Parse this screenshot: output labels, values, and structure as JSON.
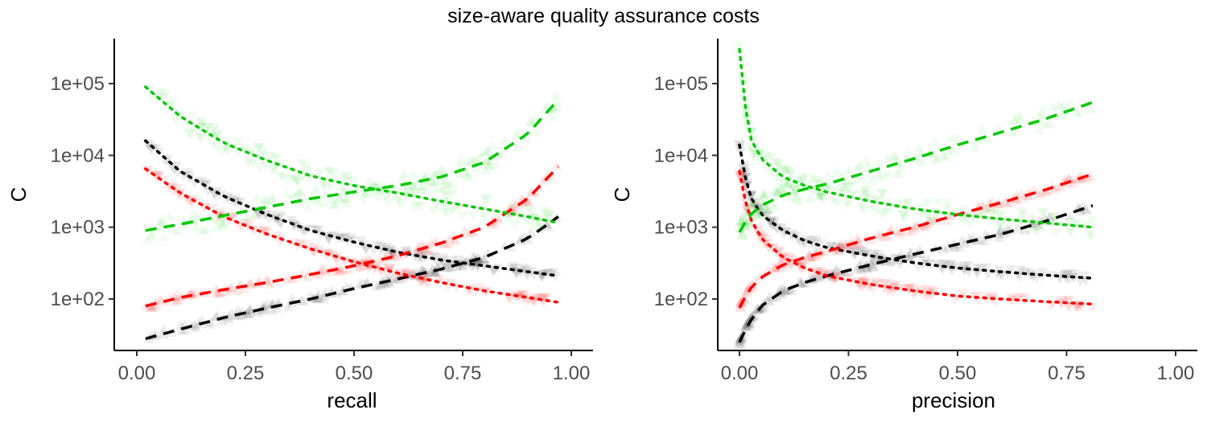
{
  "title": "size-aware quality assurance costs",
  "colors": {
    "black": "#000000",
    "red": "#ff0000",
    "green": "#00c800"
  },
  "chart_data": [
    {
      "type": "scatter",
      "panel": "left",
      "xlabel": "recall",
      "ylabel": "C",
      "xlim": [
        0,
        1
      ],
      "ylim": [
        20,
        400000
      ],
      "yscale": "log",
      "xticks": [
        "0.00",
        "0.25",
        "0.50",
        "0.75",
        "1.00"
      ],
      "yticks": [
        "1e+02",
        "1e+03",
        "1e+04",
        "1e+05"
      ],
      "grid": false,
      "series": [
        {
          "color": "black",
          "marker": "triangle-up",
          "line": "dashed",
          "x": [
            0.02,
            0.1,
            0.2,
            0.3,
            0.4,
            0.5,
            0.6,
            0.7,
            0.8,
            0.9,
            0.97
          ],
          "y": [
            28,
            38,
            55,
            75,
            100,
            140,
            190,
            260,
            380,
            700,
            1400
          ]
        },
        {
          "color": "black",
          "marker": "triangle-down",
          "line": "dotted",
          "x": [
            0.02,
            0.1,
            0.2,
            0.3,
            0.4,
            0.5,
            0.6,
            0.7,
            0.8,
            0.9,
            0.97
          ],
          "y": [
            16000,
            6000,
            2700,
            1500,
            900,
            620,
            450,
            350,
            290,
            240,
            210
          ]
        },
        {
          "color": "red",
          "marker": "triangle-up",
          "line": "dashed",
          "x": [
            0.02,
            0.1,
            0.2,
            0.3,
            0.4,
            0.5,
            0.6,
            0.7,
            0.8,
            0.9,
            0.97
          ],
          "y": [
            80,
            105,
            135,
            170,
            220,
            290,
            400,
            600,
            1000,
            2500,
            7000
          ]
        },
        {
          "color": "red",
          "marker": "triangle-down",
          "line": "dotted",
          "x": [
            0.02,
            0.1,
            0.2,
            0.3,
            0.4,
            0.5,
            0.6,
            0.7,
            0.8,
            0.9,
            0.97
          ],
          "y": [
            6500,
            3000,
            1400,
            800,
            500,
            330,
            230,
            170,
            130,
            105,
            90
          ]
        },
        {
          "color": "green",
          "marker": "triangle-up",
          "line": "dashed",
          "x": [
            0.02,
            0.1,
            0.2,
            0.3,
            0.4,
            0.5,
            0.6,
            0.7,
            0.8,
            0.9,
            0.97
          ],
          "y": [
            900,
            1100,
            1450,
            1900,
            2500,
            3100,
            3800,
            5000,
            8000,
            20000,
            60000
          ]
        },
        {
          "color": "green",
          "marker": "triangle-down",
          "line": "dotted",
          "x": [
            0.02,
            0.1,
            0.2,
            0.3,
            0.4,
            0.5,
            0.6,
            0.7,
            0.8,
            0.9,
            0.97
          ],
          "y": [
            90000,
            35000,
            15000,
            8500,
            5200,
            3800,
            3000,
            2300,
            1800,
            1400,
            1150
          ]
        }
      ]
    },
    {
      "type": "scatter",
      "panel": "right",
      "xlabel": "precision",
      "ylabel": "C",
      "xlim": [
        0,
        1
      ],
      "ylim": [
        20,
        400000
      ],
      "yscale": "log",
      "xticks": [
        "0.00",
        "0.25",
        "0.50",
        "0.75",
        "1.00"
      ],
      "yticks": [
        "1e+02",
        "1e+03",
        "1e+04",
        "1e+05"
      ],
      "grid": false,
      "series": [
        {
          "color": "black",
          "marker": "triangle-up",
          "line": "dashed",
          "x": [
            0.0,
            0.02,
            0.05,
            0.1,
            0.15,
            0.2,
            0.3,
            0.4,
            0.5,
            0.6,
            0.7,
            0.81
          ],
          "y": [
            25,
            45,
            80,
            130,
            170,
            210,
            300,
            420,
            580,
            800,
            1200,
            2000
          ]
        },
        {
          "color": "black",
          "marker": "triangle-down",
          "line": "dotted",
          "x": [
            0.0,
            0.02,
            0.05,
            0.1,
            0.15,
            0.2,
            0.3,
            0.4,
            0.5,
            0.6,
            0.7,
            0.81
          ],
          "y": [
            14000,
            3000,
            1500,
            900,
            650,
            520,
            400,
            320,
            270,
            240,
            215,
            195
          ]
        },
        {
          "color": "red",
          "marker": "triangle-up",
          "line": "dashed",
          "x": [
            0.0,
            0.02,
            0.05,
            0.1,
            0.15,
            0.2,
            0.3,
            0.4,
            0.5,
            0.6,
            0.7,
            0.81
          ],
          "y": [
            75,
            130,
            200,
            300,
            380,
            460,
            700,
            1000,
            1500,
            2200,
            3300,
            5500
          ]
        },
        {
          "color": "red",
          "marker": "triangle-down",
          "line": "dotted",
          "x": [
            0.0,
            0.02,
            0.05,
            0.1,
            0.15,
            0.2,
            0.3,
            0.4,
            0.5,
            0.6,
            0.7,
            0.81
          ],
          "y": [
            6000,
            1500,
            700,
            380,
            270,
            210,
            160,
            130,
            110,
            100,
            92,
            85
          ]
        },
        {
          "color": "green",
          "marker": "triangle-up",
          "line": "dashed",
          "x": [
            0.0,
            0.02,
            0.05,
            0.1,
            0.15,
            0.2,
            0.3,
            0.4,
            0.5,
            0.6,
            0.7,
            0.81
          ],
          "y": [
            850,
            1400,
            2000,
            2800,
            3400,
            4000,
            6000,
            9000,
            14000,
            21000,
            32000,
            55000
          ]
        },
        {
          "color": "green",
          "marker": "triangle-down",
          "line": "dotted",
          "x": [
            0.0,
            0.02,
            0.05,
            0.1,
            0.15,
            0.2,
            0.3,
            0.4,
            0.5,
            0.6,
            0.7,
            0.81
          ],
          "y": [
            300000,
            20000,
            9000,
            5000,
            3800,
            3100,
            2300,
            1800,
            1500,
            1300,
            1150,
            1000
          ]
        }
      ]
    }
  ]
}
